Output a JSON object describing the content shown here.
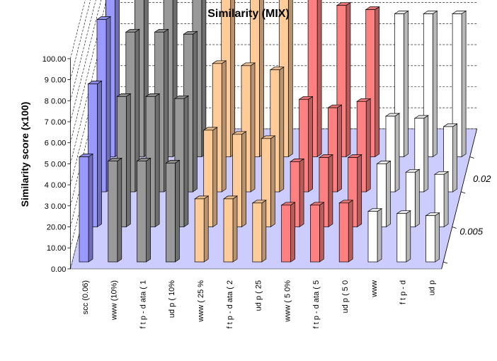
{
  "chart_data": {
    "type": "bar",
    "subtype": "3d-column",
    "title": "Similarity (MIX)",
    "ylabel": "Similarity score (x100)",
    "ylim": [
      0,
      100
    ],
    "y_ticks": [
      "0.00",
      "10.00",
      "20.00",
      "3 0.00",
      "4 0.00",
      "5 0.00",
      "6 0.00",
      "7 0.00",
      "8 0.00",
      "9 0.00",
      "100.00"
    ],
    "categories": [
      "scc (0.06)",
      "www (10%)",
      "f t p - d ata  ( 1",
      "ud p   ( 10%",
      "www  ( 25  %",
      "f t p - d ata  ( 2",
      "ud p   ( 25",
      "www  ( 5 0%",
      "f t p - d ata  ( 5",
      "ud p   ( 5  0",
      "www",
      "f t p - d",
      "ud p"
    ],
    "category_colors": [
      "#9999ff",
      "#999999",
      "#999999",
      "#999999",
      "#ffcc99",
      "#ffcc99",
      "#ffcc99",
      "#ff8080",
      "#ff8080",
      "#ff8080",
      "#ffffff",
      "#ffffff",
      "#ffffff"
    ],
    "depth_labels": [
      "0.005",
      "0.02"
    ],
    "grid": true,
    "floor_color": "#ccccff",
    "series": [
      {
        "values": [
          50,
          48,
          48,
          47,
          30,
          30,
          28,
          27,
          27,
          28,
          24,
          23,
          22
        ]
      },
      {
        "values": [
          68,
          62,
          62,
          61,
          46,
          44,
          42,
          31,
          33,
          33,
          30,
          26,
          25
        ]
      },
      {
        "values": [
          82,
          76,
          76,
          75,
          61,
          60,
          58,
          44,
          40,
          43,
          36,
          35,
          31
        ]
      },
      {
        "values": [
          96,
          95,
          94,
          94,
          81,
          81,
          80,
          75,
          72,
          70,
          68,
          68,
          68
        ]
      }
    ]
  }
}
